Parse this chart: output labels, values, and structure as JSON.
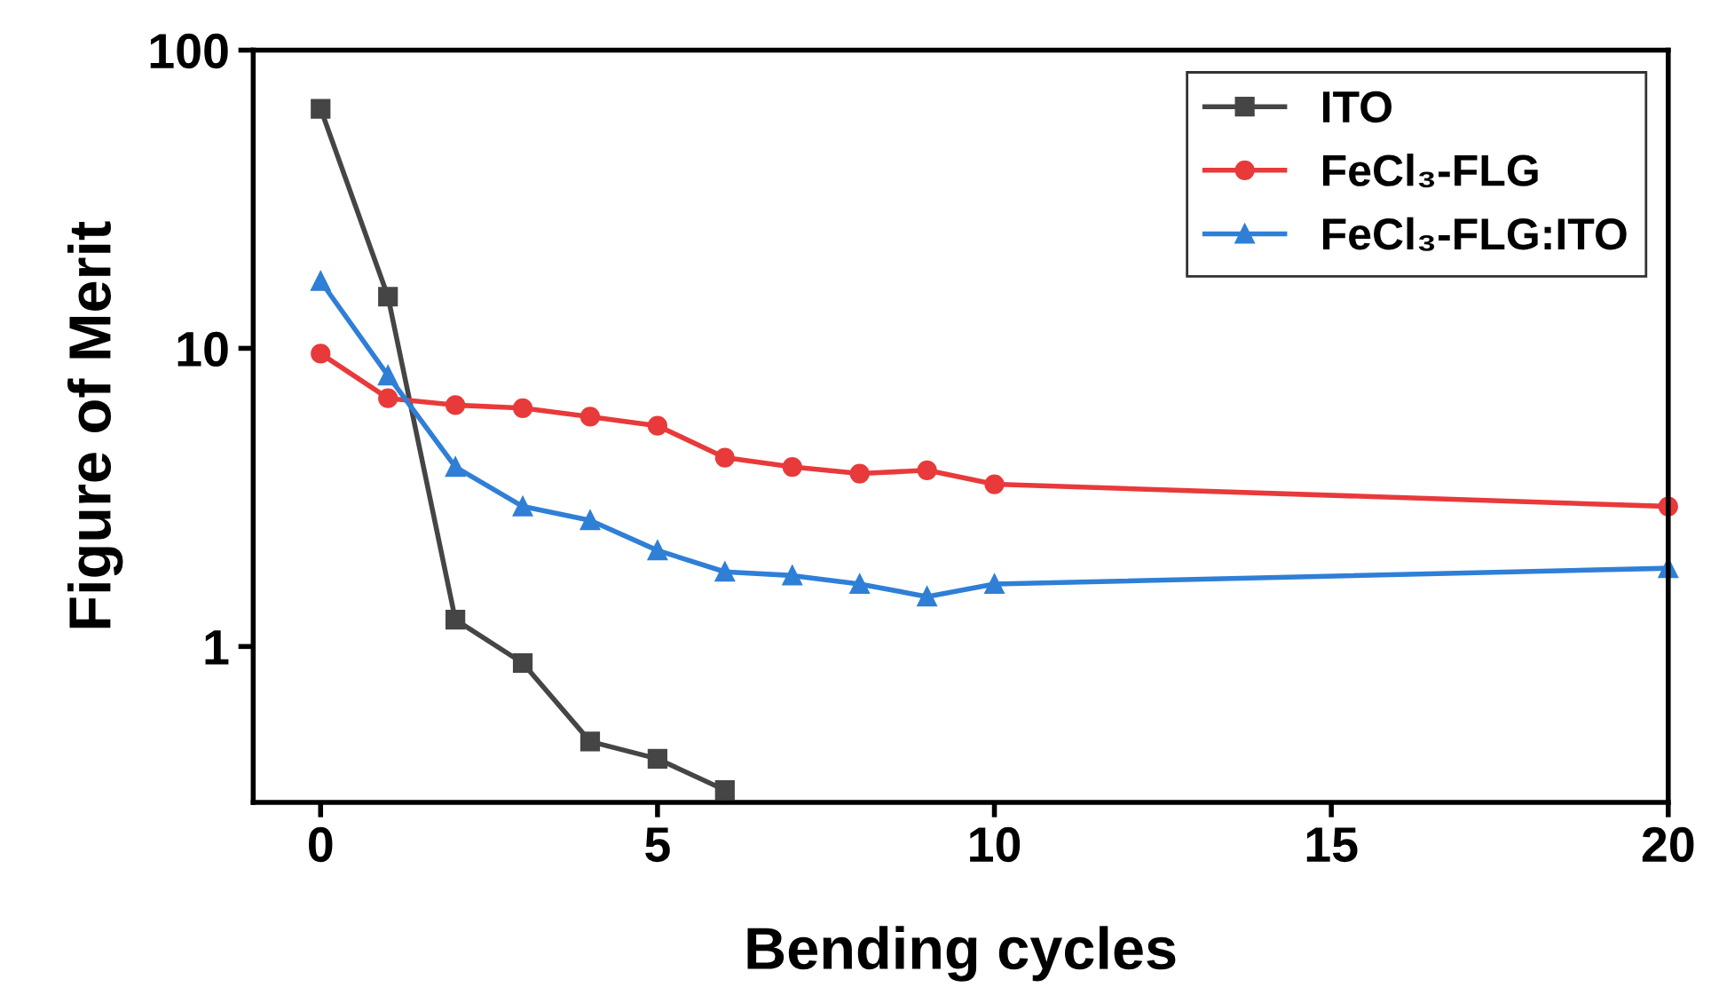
{
  "chart_data": {
    "type": "line",
    "xlabel": "Bending cycles",
    "ylabel": "Figure of Merit",
    "log": "y",
    "xlim": [
      -1,
      20
    ],
    "xticks": [
      0,
      5,
      10,
      15,
      20
    ],
    "ylim": [
      0.3,
      100
    ],
    "yticks": [
      1,
      10,
      100
    ],
    "grid": false,
    "legend": "top right",
    "line_style": "solid",
    "series": [
      {
        "name": "ITO",
        "color": "#454545",
        "marker": "square",
        "x": [
          0,
          1,
          2,
          3,
          4,
          5,
          6
        ],
        "values": [
          63.6,
          14.9,
          1.23,
          0.88,
          0.48,
          0.42,
          0.33
        ]
      },
      {
        "name": "FeCl₃-FLG",
        "color": "#e83a3a",
        "marker": "circle",
        "x": [
          0,
          1,
          2,
          3,
          4,
          5,
          6,
          7,
          8,
          9,
          10,
          20
        ],
        "values": [
          9.6,
          6.8,
          6.45,
          6.3,
          5.9,
          5.5,
          4.3,
          4.0,
          3.8,
          3.9,
          3.5,
          2.95
        ]
      },
      {
        "name": "FeCl₃-FLG:ITO",
        "color": "#2f7fd6",
        "marker": "triangle",
        "x": [
          0,
          1,
          2,
          3,
          4,
          5,
          6,
          7,
          8,
          9,
          10,
          20
        ],
        "values": [
          16.8,
          8.1,
          4.0,
          2.95,
          2.65,
          2.1,
          1.78,
          1.73,
          1.62,
          1.47,
          1.62,
          1.83
        ]
      }
    ]
  }
}
